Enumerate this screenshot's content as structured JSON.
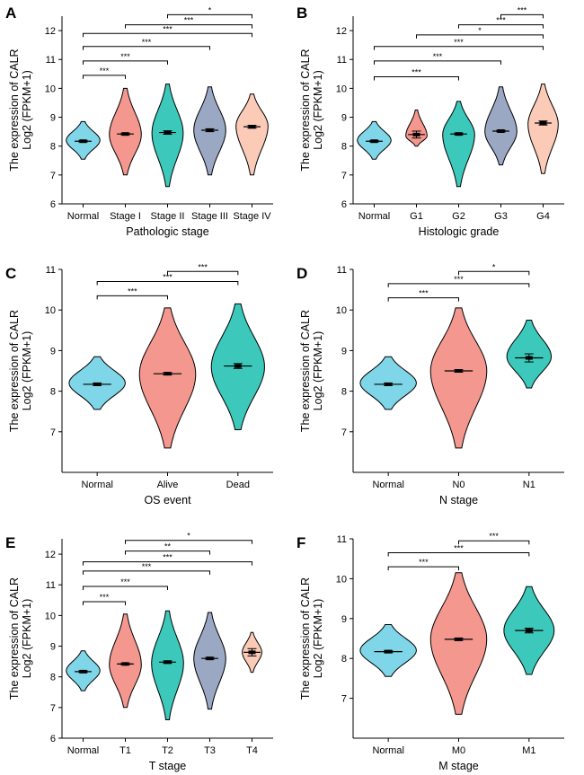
{
  "figure": {
    "colors": {
      "normal": "#7fd6e8",
      "salmon": "#f4978e",
      "teal": "#3cc9bb",
      "slate": "#9aa8c4",
      "peach": "#fbcbb8"
    }
  },
  "chart_data": [
    {
      "type": "violin",
      "panel": "A",
      "ylabel_line1": "The expression of CALR",
      "ylabel_line2": "Log2 (FPKM+1)",
      "xlabel": "Pathologic stage",
      "ylim": [
        6,
        12.5
      ],
      "yticks": [
        6,
        7,
        8,
        9,
        10,
        11,
        12
      ],
      "categories": [
        "Normal",
        "Stage I",
        "Stage II",
        "Stage III",
        "Stage IV"
      ],
      "series": [
        {
          "name": "Normal",
          "median": 8.17,
          "min": 7.55,
          "max": 8.85,
          "widest": 8.2,
          "width": 0.95,
          "err": 0.03,
          "color": "normal"
        },
        {
          "name": "Stage I",
          "median": 8.42,
          "min": 7.0,
          "max": 10.0,
          "widest": 8.4,
          "width": 0.9,
          "err": 0.03,
          "color": "salmon"
        },
        {
          "name": "Stage II",
          "median": 8.47,
          "min": 6.6,
          "max": 10.15,
          "widest": 8.45,
          "width": 0.88,
          "err": 0.06,
          "color": "teal"
        },
        {
          "name": "Stage III",
          "median": 8.55,
          "min": 7.0,
          "max": 10.05,
          "widest": 8.55,
          "width": 0.9,
          "err": 0.05,
          "color": "slate"
        },
        {
          "name": "Stage IV",
          "median": 8.67,
          "min": 7.0,
          "max": 9.8,
          "widest": 8.7,
          "width": 0.9,
          "err": 0.05,
          "color": "peach"
        }
      ],
      "significance": [
        {
          "from": 0,
          "to": 1,
          "y": 10.45,
          "label": "***"
        },
        {
          "from": 0,
          "to": 2,
          "y": 10.95,
          "label": "***"
        },
        {
          "from": 0,
          "to": 3,
          "y": 11.45,
          "label": "***"
        },
        {
          "from": 0,
          "to": 4,
          "y": 11.9,
          "label": "***"
        },
        {
          "from": 1,
          "to": 4,
          "y": 12.2,
          "label": "***"
        },
        {
          "from": 2,
          "to": 4,
          "y": 12.55,
          "label": "*"
        }
      ]
    },
    {
      "type": "violin",
      "panel": "B",
      "ylabel_line1": "The expression of CALR",
      "ylabel_line2": "Log2 (FPKM+1)",
      "xlabel": "Histologic grade",
      "ylim": [
        6,
        12.5
      ],
      "yticks": [
        6,
        7,
        8,
        9,
        10,
        11,
        12
      ],
      "categories": [
        "Normal",
        "G1",
        "G2",
        "G3",
        "G4"
      ],
      "series": [
        {
          "name": "Normal",
          "median": 8.17,
          "min": 7.55,
          "max": 8.85,
          "widest": 8.2,
          "width": 0.95,
          "err": 0.03,
          "color": "normal"
        },
        {
          "name": "G1",
          "median": 8.4,
          "min": 8.0,
          "max": 9.25,
          "widest": 8.35,
          "width": 0.6,
          "err": 0.12,
          "color": "salmon"
        },
        {
          "name": "G2",
          "median": 8.42,
          "min": 6.6,
          "max": 9.55,
          "widest": 8.4,
          "width": 0.9,
          "err": 0.03,
          "color": "teal"
        },
        {
          "name": "G3",
          "median": 8.52,
          "min": 7.35,
          "max": 10.05,
          "widest": 8.5,
          "width": 0.9,
          "err": 0.03,
          "color": "slate"
        },
        {
          "name": "G4",
          "median": 8.8,
          "min": 7.05,
          "max": 10.15,
          "widest": 8.75,
          "width": 0.85,
          "err": 0.07,
          "color": "peach"
        }
      ],
      "significance": [
        {
          "from": 0,
          "to": 2,
          "y": 10.4,
          "label": "***"
        },
        {
          "from": 0,
          "to": 3,
          "y": 10.95,
          "label": "***"
        },
        {
          "from": 0,
          "to": 4,
          "y": 11.45,
          "label": "***"
        },
        {
          "from": 1,
          "to": 4,
          "y": 11.85,
          "label": "*"
        },
        {
          "from": 2,
          "to": 4,
          "y": 12.2,
          "label": "***"
        },
        {
          "from": 3,
          "to": 4,
          "y": 12.55,
          "label": "***"
        }
      ]
    },
    {
      "type": "violin",
      "panel": "C",
      "ylabel_line1": "The expression of CALR",
      "ylabel_line2": "Log2 (FPKM+1)",
      "xlabel": "OS event",
      "ylim": [
        6,
        11
      ],
      "yticks": [
        7,
        8,
        9,
        10,
        11
      ],
      "categories": [
        "Normal",
        "Alive",
        "Dead"
      ],
      "series": [
        {
          "name": "Normal",
          "median": 8.17,
          "min": 7.55,
          "max": 8.85,
          "widest": 8.2,
          "width": 0.95,
          "err": 0.03,
          "color": "normal"
        },
        {
          "name": "Alive",
          "median": 8.43,
          "min": 6.6,
          "max": 10.05,
          "widest": 8.42,
          "width": 0.95,
          "err": 0.03,
          "color": "salmon"
        },
        {
          "name": "Dead",
          "median": 8.62,
          "min": 7.05,
          "max": 10.15,
          "widest": 8.6,
          "width": 0.9,
          "err": 0.06,
          "color": "teal"
        }
      ],
      "significance": [
        {
          "from": 0,
          "to": 1,
          "y": 10.35,
          "label": "***"
        },
        {
          "from": 0,
          "to": 2,
          "y": 10.7,
          "label": "***"
        },
        {
          "from": 1,
          "to": 2,
          "y": 10.95,
          "label": "***"
        }
      ]
    },
    {
      "type": "violin",
      "panel": "D",
      "ylabel_line1": "The expression of CALR",
      "ylabel_line2": "Log2 (FPKM+1)",
      "xlabel": "N stage",
      "ylim": [
        6,
        11
      ],
      "yticks": [
        7,
        8,
        9,
        10,
        11
      ],
      "categories": [
        "Normal",
        "N0",
        "N1"
      ],
      "series": [
        {
          "name": "Normal",
          "median": 8.17,
          "min": 7.55,
          "max": 8.85,
          "widest": 8.2,
          "width": 0.95,
          "err": 0.03,
          "color": "normal"
        },
        {
          "name": "N0",
          "median": 8.5,
          "min": 6.6,
          "max": 10.05,
          "widest": 8.5,
          "width": 0.95,
          "err": 0.03,
          "color": "salmon"
        },
        {
          "name": "N1",
          "median": 8.82,
          "min": 8.08,
          "max": 9.75,
          "widest": 8.85,
          "width": 0.75,
          "err": 0.1,
          "color": "teal"
        }
      ],
      "significance": [
        {
          "from": 0,
          "to": 1,
          "y": 10.3,
          "label": "***"
        },
        {
          "from": 0,
          "to": 2,
          "y": 10.65,
          "label": "***"
        },
        {
          "from": 1,
          "to": 2,
          "y": 10.95,
          "label": "*"
        }
      ]
    },
    {
      "type": "violin",
      "panel": "E",
      "ylabel_line1": "The expression of CALR",
      "ylabel_line2": "Log2 (FPKM+1)",
      "xlabel": "T stage",
      "ylim": [
        6,
        12.5
      ],
      "yticks": [
        6,
        7,
        8,
        9,
        10,
        11,
        12
      ],
      "categories": [
        "Normal",
        "T1",
        "T2",
        "T3",
        "T4"
      ],
      "series": [
        {
          "name": "Normal",
          "median": 8.17,
          "min": 7.55,
          "max": 8.85,
          "widest": 8.2,
          "width": 0.95,
          "err": 0.03,
          "color": "normal"
        },
        {
          "name": "T1",
          "median": 8.42,
          "min": 7.0,
          "max": 10.05,
          "widest": 8.4,
          "width": 0.9,
          "err": 0.03,
          "color": "salmon"
        },
        {
          "name": "T2",
          "median": 8.48,
          "min": 6.6,
          "max": 10.15,
          "widest": 8.45,
          "width": 0.9,
          "err": 0.04,
          "color": "teal"
        },
        {
          "name": "T3",
          "median": 8.6,
          "min": 6.95,
          "max": 10.1,
          "widest": 8.6,
          "width": 0.9,
          "err": 0.03,
          "color": "slate"
        },
        {
          "name": "T4",
          "median": 8.8,
          "min": 8.15,
          "max": 9.45,
          "widest": 8.8,
          "width": 0.55,
          "err": 0.12,
          "color": "peach"
        }
      ],
      "significance": [
        {
          "from": 0,
          "to": 1,
          "y": 10.45,
          "label": "***"
        },
        {
          "from": 0,
          "to": 2,
          "y": 10.95,
          "label": "***"
        },
        {
          "from": 0,
          "to": 3,
          "y": 11.45,
          "label": "***"
        },
        {
          "from": 0,
          "to": 4,
          "y": 11.75,
          "label": "***"
        },
        {
          "from": 1,
          "to": 3,
          "y": 12.1,
          "label": "**"
        },
        {
          "from": 1,
          "to": 4,
          "y": 12.45,
          "label": "*"
        }
      ]
    },
    {
      "type": "violin",
      "panel": "F",
      "ylabel_line1": "The expression of CALR",
      "ylabel_line2": "Log2 (FPKM+1)",
      "xlabel": "M stage",
      "ylim": [
        6,
        11
      ],
      "yticks": [
        7,
        8,
        9,
        10,
        11
      ],
      "categories": [
        "Normal",
        "M0",
        "M1"
      ],
      "series": [
        {
          "name": "Normal",
          "median": 8.17,
          "min": 7.55,
          "max": 8.85,
          "widest": 8.2,
          "width": 0.95,
          "err": 0.03,
          "color": "normal"
        },
        {
          "name": "M0",
          "median": 8.48,
          "min": 6.6,
          "max": 10.15,
          "widest": 8.48,
          "width": 0.95,
          "err": 0.03,
          "color": "salmon"
        },
        {
          "name": "M1",
          "median": 8.7,
          "min": 7.6,
          "max": 9.8,
          "widest": 8.7,
          "width": 0.85,
          "err": 0.06,
          "color": "teal"
        }
      ],
      "significance": [
        {
          "from": 0,
          "to": 1,
          "y": 10.3,
          "label": "***"
        },
        {
          "from": 0,
          "to": 2,
          "y": 10.65,
          "label": "***"
        },
        {
          "from": 1,
          "to": 2,
          "y": 10.95,
          "label": "***"
        }
      ]
    }
  ]
}
